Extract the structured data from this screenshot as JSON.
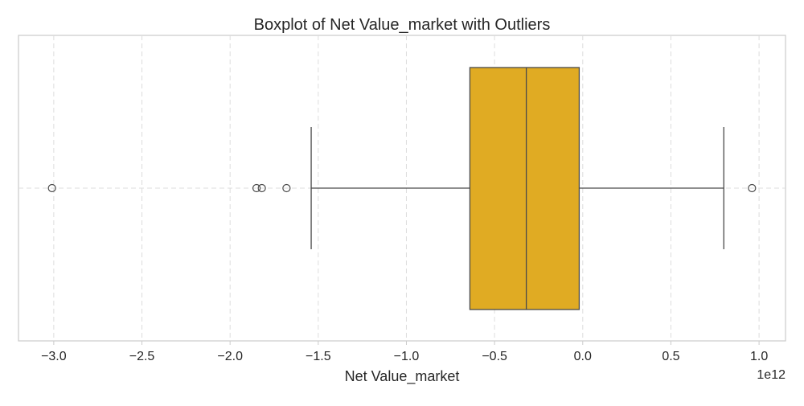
{
  "chart_data": {
    "type": "boxplot",
    "title": "Boxplot of Net Value_market with Outliers",
    "xlabel": "Net Value_market",
    "ylabel": "",
    "offset_label": "1e12",
    "orientation": "horizontal",
    "xlim": [
      -3.2,
      1.15
    ],
    "xticks": [
      -3.0,
      -2.5,
      -2.0,
      -1.5,
      -1.0,
      -0.5,
      0.0,
      0.5,
      1.0
    ],
    "xtick_labels": [
      "−3.0",
      "−2.5",
      "−2.0",
      "−1.5",
      "−1.0",
      "−0.5",
      "0.0",
      "0.5",
      "1.0"
    ],
    "grid": true,
    "box": {
      "whisker_low": -1.54,
      "q1": -0.64,
      "median": -0.32,
      "q3": -0.02,
      "whisker_high": 0.8,
      "outliers": [
        -3.01,
        -1.85,
        -1.82,
        -1.68,
        0.96
      ],
      "color": "#e0ab23"
    }
  }
}
